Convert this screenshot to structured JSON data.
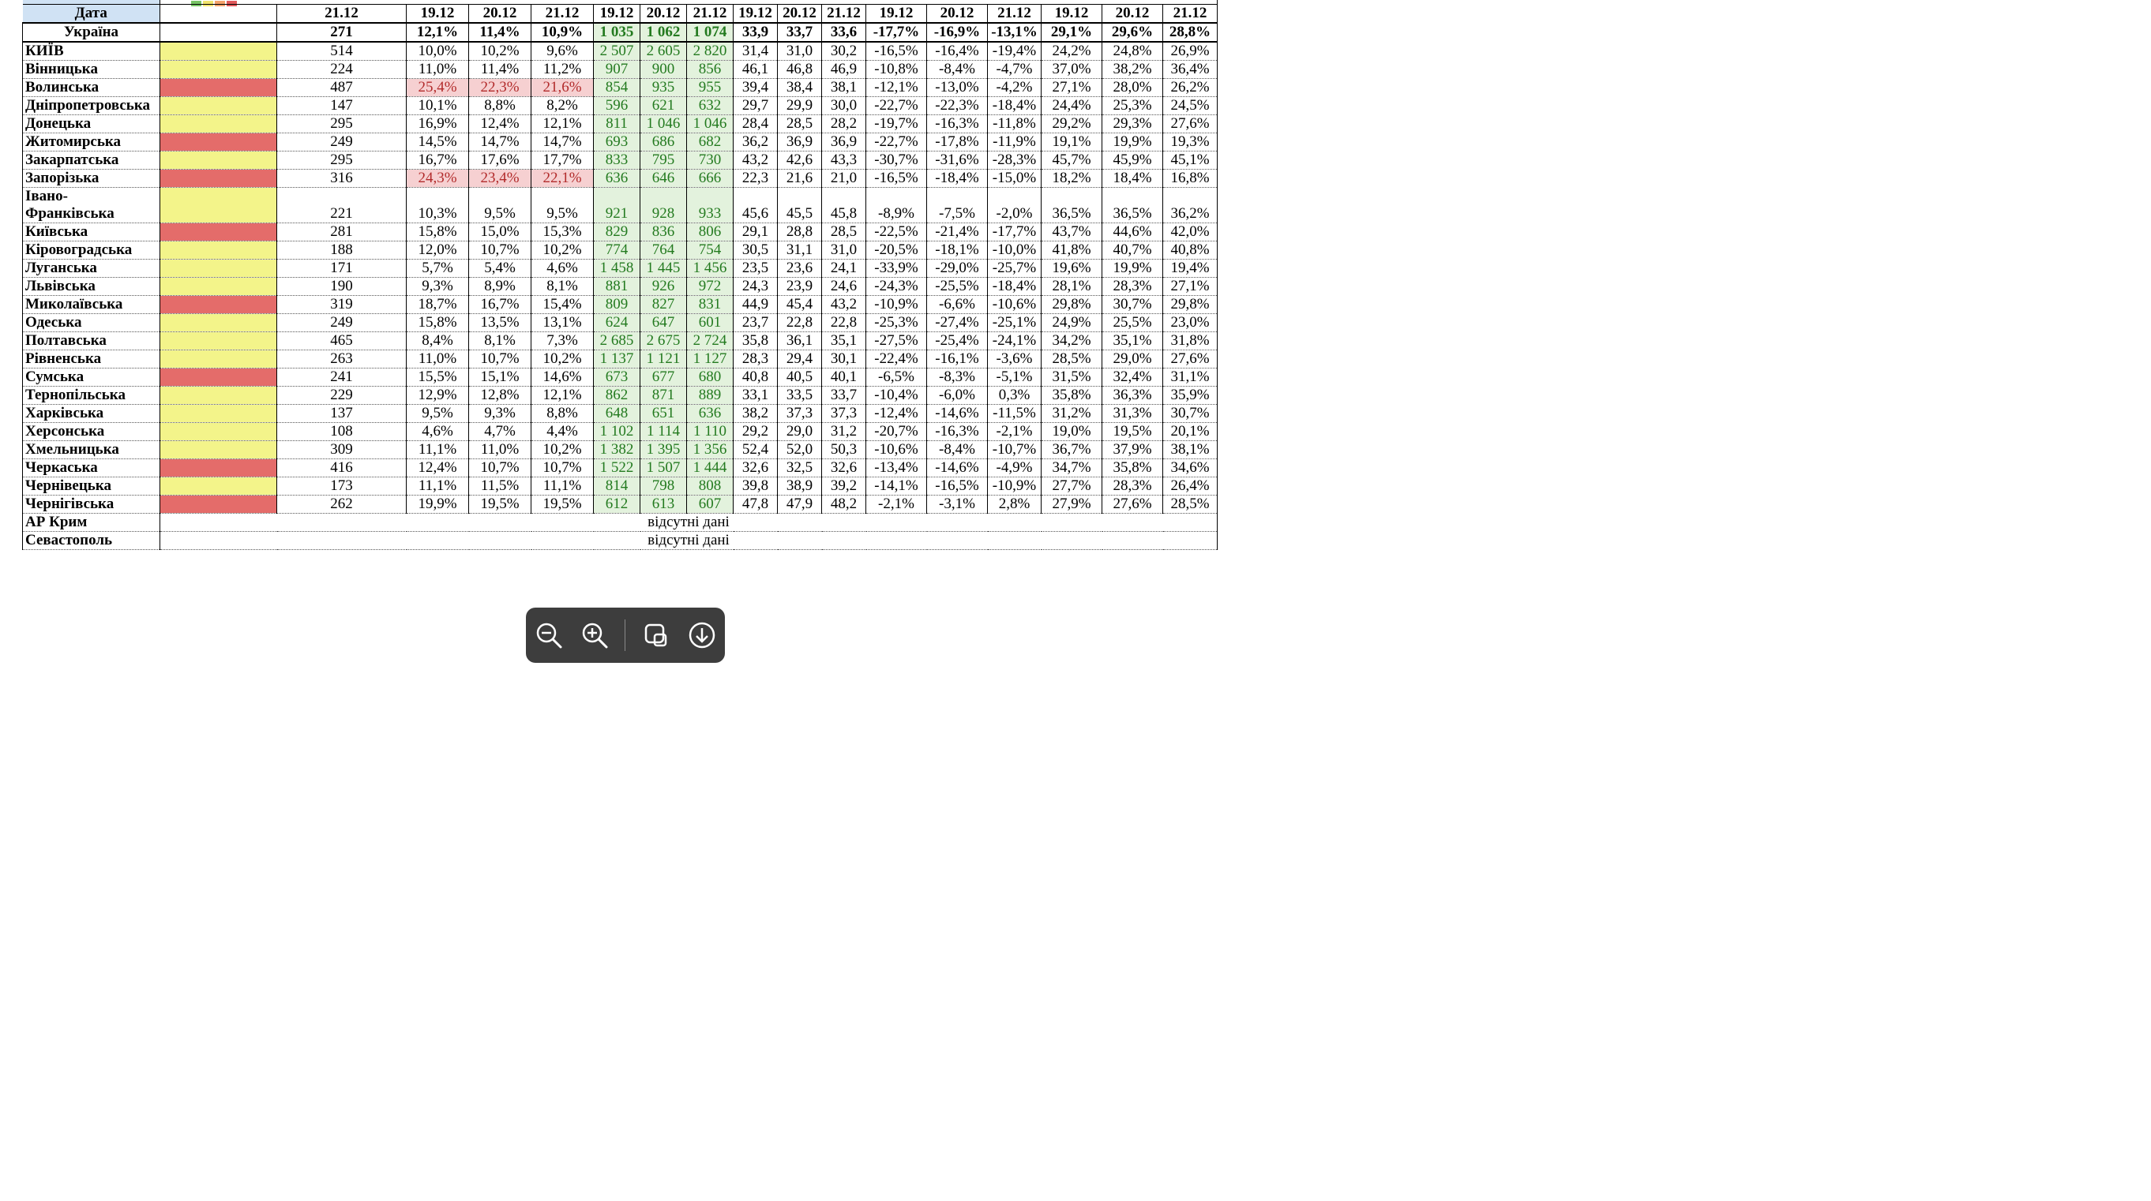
{
  "legend_colors": [
    "#77c465",
    "#f0e36c",
    "#f4a26b",
    "#e0585a"
  ],
  "header": {
    "top_label": "",
    "date_label": "Дата",
    "dates": [
      "21.12",
      "19.12",
      "20.12",
      "21.12",
      "19.12",
      "20.12",
      "21.12",
      "19.12",
      "20.12",
      "21.12",
      "19.12",
      "20.12",
      "21.12",
      "19.12",
      "20.12",
      "21.12"
    ]
  },
  "ukraine": {
    "name": "Україна",
    "values": [
      "271",
      "12,1%",
      "11,4%",
      "10,9%",
      "1 035",
      "1 062",
      "1 074",
      "33,9",
      "33,7",
      "33,6",
      "-17,7%",
      "-16,9%",
      "-13,1%",
      "29,1%",
      "29,6%",
      "28,8%"
    ]
  },
  "regions": [
    {
      "name": "КИЇВ",
      "status": "yellow",
      "values": [
        "514",
        "10,0%",
        "10,2%",
        "9,6%",
        "2 507",
        "2 605",
        "2 820",
        "31,4",
        "31,0",
        "30,2",
        "-16,5%",
        "-16,4%",
        "-19,4%",
        "24,2%",
        "24,8%",
        "26,9%"
      ]
    },
    {
      "name": "Вінницька",
      "status": "yellow",
      "values": [
        "224",
        "11,0%",
        "11,4%",
        "11,2%",
        "907",
        "900",
        "856",
        "46,1",
        "46,8",
        "46,9",
        "-10,8%",
        "-8,4%",
        "-4,7%",
        "37,0%",
        "38,2%",
        "36,4%"
      ]
    },
    {
      "name": "Волинська",
      "status": "red",
      "highlight": true,
      "values": [
        "487",
        "25,4%",
        "22,3%",
        "21,6%",
        "854",
        "935",
        "955",
        "39,4",
        "38,4",
        "38,1",
        "-12,1%",
        "-13,0%",
        "-4,2%",
        "27,1%",
        "28,0%",
        "26,2%"
      ]
    },
    {
      "name": "Дніпропетровська",
      "status": "yellow",
      "values": [
        "147",
        "10,1%",
        "8,8%",
        "8,2%",
        "596",
        "621",
        "632",
        "29,7",
        "29,9",
        "30,0",
        "-22,7%",
        "-22,3%",
        "-18,4%",
        "24,4%",
        "25,3%",
        "24,5%"
      ]
    },
    {
      "name": "Донецька",
      "status": "yellow",
      "values": [
        "295",
        "16,9%",
        "12,4%",
        "12,1%",
        "811",
        "1 046",
        "1 046",
        "28,4",
        "28,5",
        "28,2",
        "-19,7%",
        "-16,3%",
        "-11,8%",
        "29,2%",
        "29,3%",
        "27,6%"
      ]
    },
    {
      "name": "Житомирська",
      "status": "red",
      "values": [
        "249",
        "14,5%",
        "14,7%",
        "14,7%",
        "693",
        "686",
        "682",
        "36,2",
        "36,9",
        "36,9",
        "-22,7%",
        "-17,8%",
        "-11,9%",
        "19,1%",
        "19,9%",
        "19,3%"
      ]
    },
    {
      "name": "Закарпатська",
      "status": "yellow",
      "values": [
        "295",
        "16,7%",
        "17,6%",
        "17,7%",
        "833",
        "795",
        "730",
        "43,2",
        "42,6",
        "43,3",
        "-30,7%",
        "-31,6%",
        "-28,3%",
        "45,7%",
        "45,9%",
        "45,1%"
      ]
    },
    {
      "name": "Запорізька",
      "status": "red",
      "highlight": true,
      "values": [
        "316",
        "24,3%",
        "23,4%",
        "22,1%",
        "636",
        "646",
        "666",
        "22,3",
        "21,6",
        "21,0",
        "-16,5%",
        "-18,4%",
        "-15,0%",
        "18,2%",
        "18,4%",
        "16,8%"
      ]
    },
    {
      "name": "Івано-",
      "name2": "Франківська",
      "status": "yellow",
      "values": [
        "221",
        "10,3%",
        "9,5%",
        "9,5%",
        "921",
        "928",
        "933",
        "45,6",
        "45,5",
        "45,8",
        "-8,9%",
        "-7,5%",
        "-2,0%",
        "36,5%",
        "36,5%",
        "36,2%"
      ]
    },
    {
      "name": "Київська",
      "status": "red",
      "values": [
        "281",
        "15,8%",
        "15,0%",
        "15,3%",
        "829",
        "836",
        "806",
        "29,1",
        "28,8",
        "28,5",
        "-22,5%",
        "-21,4%",
        "-17,7%",
        "43,7%",
        "44,6%",
        "42,0%"
      ]
    },
    {
      "name": "Кіровоградська",
      "status": "yellow",
      "values": [
        "188",
        "12,0%",
        "10,7%",
        "10,2%",
        "774",
        "764",
        "754",
        "30,5",
        "31,1",
        "31,0",
        "-20,5%",
        "-18,1%",
        "-10,0%",
        "41,8%",
        "40,7%",
        "40,8%"
      ]
    },
    {
      "name": "Луганська",
      "status": "yellow",
      "values": [
        "171",
        "5,7%",
        "5,4%",
        "4,6%",
        "1 458",
        "1 445",
        "1 456",
        "23,5",
        "23,6",
        "24,1",
        "-33,9%",
        "-29,0%",
        "-25,7%",
        "19,6%",
        "19,9%",
        "19,4%"
      ]
    },
    {
      "name": "Львівська",
      "status": "yellow",
      "values": [
        "190",
        "9,3%",
        "8,9%",
        "8,1%",
        "881",
        "926",
        "972",
        "24,3",
        "23,9",
        "24,6",
        "-24,3%",
        "-25,5%",
        "-18,4%",
        "28,1%",
        "28,3%",
        "27,1%"
      ]
    },
    {
      "name": "Миколаївська",
      "status": "red",
      "values": [
        "319",
        "18,7%",
        "16,7%",
        "15,4%",
        "809",
        "827",
        "831",
        "44,9",
        "45,4",
        "43,2",
        "-10,9%",
        "-6,6%",
        "-10,6%",
        "29,8%",
        "30,7%",
        "29,8%"
      ]
    },
    {
      "name": "Одеська",
      "status": "yellow",
      "values": [
        "249",
        "15,8%",
        "13,5%",
        "13,1%",
        "624",
        "647",
        "601",
        "23,7",
        "22,8",
        "22,8",
        "-25,3%",
        "-27,4%",
        "-25,1%",
        "24,9%",
        "25,5%",
        "23,0%"
      ]
    },
    {
      "name": "Полтавська",
      "status": "yellow",
      "values": [
        "465",
        "8,4%",
        "8,1%",
        "7,3%",
        "2 685",
        "2 675",
        "2 724",
        "35,8",
        "36,1",
        "35,1",
        "-27,5%",
        "-25,4%",
        "-24,1%",
        "34,2%",
        "35,1%",
        "31,8%"
      ]
    },
    {
      "name": "Рівненська",
      "status": "yellow",
      "values": [
        "263",
        "11,0%",
        "10,7%",
        "10,2%",
        "1 137",
        "1 121",
        "1 127",
        "28,3",
        "29,4",
        "30,1",
        "-22,4%",
        "-16,1%",
        "-3,6%",
        "28,5%",
        "29,0%",
        "27,6%"
      ]
    },
    {
      "name": "Сумська",
      "status": "red",
      "values": [
        "241",
        "15,5%",
        "15,1%",
        "14,6%",
        "673",
        "677",
        "680",
        "40,8",
        "40,5",
        "40,1",
        "-6,5%",
        "-8,3%",
        "-5,1%",
        "31,5%",
        "32,4%",
        "31,1%"
      ]
    },
    {
      "name": "Тернопільська",
      "status": "yellow",
      "values": [
        "229",
        "12,9%",
        "12,8%",
        "12,1%",
        "862",
        "871",
        "889",
        "33,1",
        "33,5",
        "33,7",
        "-10,4%",
        "-6,0%",
        "0,3%",
        "35,8%",
        "36,3%",
        "35,9%"
      ]
    },
    {
      "name": "Харківська",
      "status": "yellow",
      "values": [
        "137",
        "9,5%",
        "9,3%",
        "8,8%",
        "648",
        "651",
        "636",
        "38,2",
        "37,3",
        "37,3",
        "-12,4%",
        "-14,6%",
        "-11,5%",
        "31,2%",
        "31,3%",
        "30,7%"
      ]
    },
    {
      "name": "Херсонська",
      "status": "yellow",
      "values": [
        "108",
        "4,6%",
        "4,7%",
        "4,4%",
        "1 102",
        "1 114",
        "1 110",
        "29,2",
        "29,0",
        "31,2",
        "-20,7%",
        "-16,3%",
        "-2,1%",
        "19,0%",
        "19,5%",
        "20,1%"
      ]
    },
    {
      "name": "Хмельницька",
      "status": "yellow",
      "values": [
        "309",
        "11,1%",
        "11,0%",
        "10,2%",
        "1 382",
        "1 395",
        "1 356",
        "52,4",
        "52,0",
        "50,3",
        "-10,6%",
        "-8,4%",
        "-10,7%",
        "36,7%",
        "37,9%",
        "38,1%"
      ]
    },
    {
      "name": "Черкаська",
      "status": "red",
      "values": [
        "416",
        "12,4%",
        "10,7%",
        "10,7%",
        "1 522",
        "1 507",
        "1 444",
        "32,6",
        "32,5",
        "32,6",
        "-13,4%",
        "-14,6%",
        "-4,9%",
        "34,7%",
        "35,8%",
        "34,6%"
      ]
    },
    {
      "name": "Чернівецька",
      "status": "yellow",
      "values": [
        "173",
        "11,1%",
        "11,5%",
        "11,1%",
        "814",
        "798",
        "808",
        "39,8",
        "38,9",
        "39,2",
        "-14,1%",
        "-16,5%",
        "-10,9%",
        "27,7%",
        "28,3%",
        "26,4%"
      ]
    },
    {
      "name": "Чернігівська",
      "status": "red",
      "values": [
        "262",
        "19,9%",
        "19,5%",
        "19,5%",
        "612",
        "613",
        "607",
        "47,8",
        "47,9",
        "48,2",
        "-2,1%",
        "-3,1%",
        "2,8%",
        "27,9%",
        "27,6%",
        "28,5%"
      ]
    }
  ],
  "missing_rows": [
    {
      "name": "АР Крим",
      "note": "відсутні дані"
    },
    {
      "name": "Севастополь",
      "note": "відсутні дані"
    }
  ],
  "toolbar": {
    "icons": [
      "zoom-out-icon",
      "zoom-in-icon",
      "copy-icon",
      "download-icon"
    ],
    "background": "#282828"
  },
  "colors": {
    "status_yellow": "#f3f48a",
    "status_red": "#e46c6a",
    "green_fill": "#e3f2dd",
    "green_text": "#237a1f",
    "red_fill": "#f6d0d1",
    "red_text": "#b22b2b",
    "date_header_fill": "#d0e2f4"
  }
}
